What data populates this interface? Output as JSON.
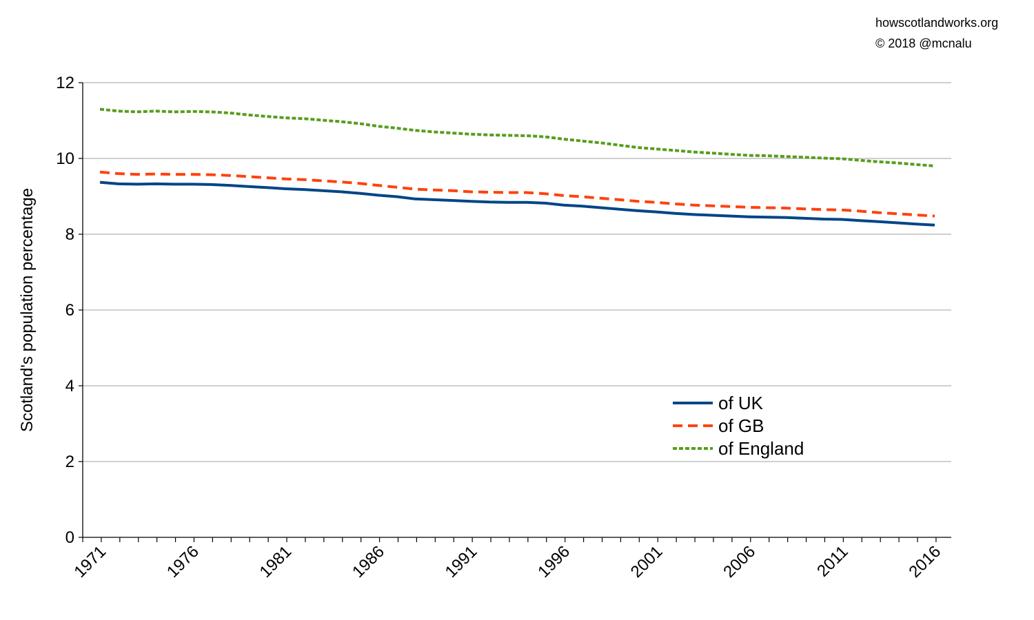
{
  "credits": {
    "site": "howscotlandworks.org",
    "copyright": "© 2018  @mcnalu"
  },
  "chart_data": {
    "type": "line",
    "title": "",
    "xlabel": "",
    "ylabel": "Scotland's population percentage",
    "xlim": [
      1971,
      2016
    ],
    "ylim": [
      0,
      12
    ],
    "y_ticks": [
      "0",
      "2",
      "4",
      "6",
      "8",
      "10",
      "12"
    ],
    "x_ticks": [
      "1971",
      "1976",
      "1981",
      "1986",
      "1991",
      "1996",
      "2001",
      "2006",
      "2011",
      "2016"
    ],
    "grid": "horizontal",
    "legend_position": "bottom-right",
    "x": [
      1971,
      1972,
      1973,
      1974,
      1975,
      1976,
      1977,
      1978,
      1979,
      1980,
      1981,
      1982,
      1983,
      1984,
      1985,
      1986,
      1987,
      1988,
      1989,
      1990,
      1991,
      1992,
      1993,
      1994,
      1995,
      1996,
      1997,
      1998,
      1999,
      2000,
      2001,
      2002,
      2003,
      2004,
      2005,
      2006,
      2007,
      2008,
      2009,
      2010,
      2011,
      2012,
      2013,
      2014,
      2015,
      2016
    ],
    "series": [
      {
        "name": "of UK",
        "color": "#004586",
        "style": "solid",
        "values": [
          9.37,
          9.33,
          9.32,
          9.33,
          9.32,
          9.32,
          9.31,
          9.29,
          9.26,
          9.23,
          9.2,
          9.18,
          9.15,
          9.12,
          9.08,
          9.03,
          8.99,
          8.93,
          8.91,
          8.89,
          8.87,
          8.85,
          8.84,
          8.84,
          8.82,
          8.77,
          8.74,
          8.7,
          8.66,
          8.62,
          8.59,
          8.55,
          8.52,
          8.5,
          8.48,
          8.46,
          8.45,
          8.44,
          8.42,
          8.4,
          8.39,
          8.36,
          8.33,
          8.3,
          8.27,
          8.24
        ]
      },
      {
        "name": "of GB",
        "color": "#ff420e",
        "style": "dashed",
        "values": [
          9.64,
          9.6,
          9.58,
          9.59,
          9.58,
          9.58,
          9.57,
          9.55,
          9.52,
          9.49,
          9.46,
          9.44,
          9.41,
          9.38,
          9.34,
          9.29,
          9.24,
          9.19,
          9.17,
          9.15,
          9.12,
          9.11,
          9.1,
          9.1,
          9.07,
          9.02,
          8.99,
          8.95,
          8.91,
          8.87,
          8.84,
          8.8,
          8.77,
          8.75,
          8.73,
          8.71,
          8.7,
          8.69,
          8.67,
          8.65,
          8.64,
          8.61,
          8.57,
          8.54,
          8.51,
          8.48
        ]
      },
      {
        "name": "of England",
        "color": "#579d1c",
        "style": "dotted",
        "values": [
          11.3,
          11.25,
          11.23,
          11.25,
          11.23,
          11.24,
          11.23,
          11.2,
          11.15,
          11.11,
          11.07,
          11.05,
          11.01,
          10.97,
          10.92,
          10.85,
          10.8,
          10.74,
          10.7,
          10.67,
          10.64,
          10.62,
          10.61,
          10.6,
          10.57,
          10.51,
          10.46,
          10.41,
          10.35,
          10.29,
          10.25,
          10.21,
          10.17,
          10.14,
          10.11,
          10.08,
          10.07,
          10.05,
          10.03,
          10.01,
          9.99,
          9.95,
          9.91,
          9.88,
          9.84,
          9.8
        ]
      }
    ]
  }
}
